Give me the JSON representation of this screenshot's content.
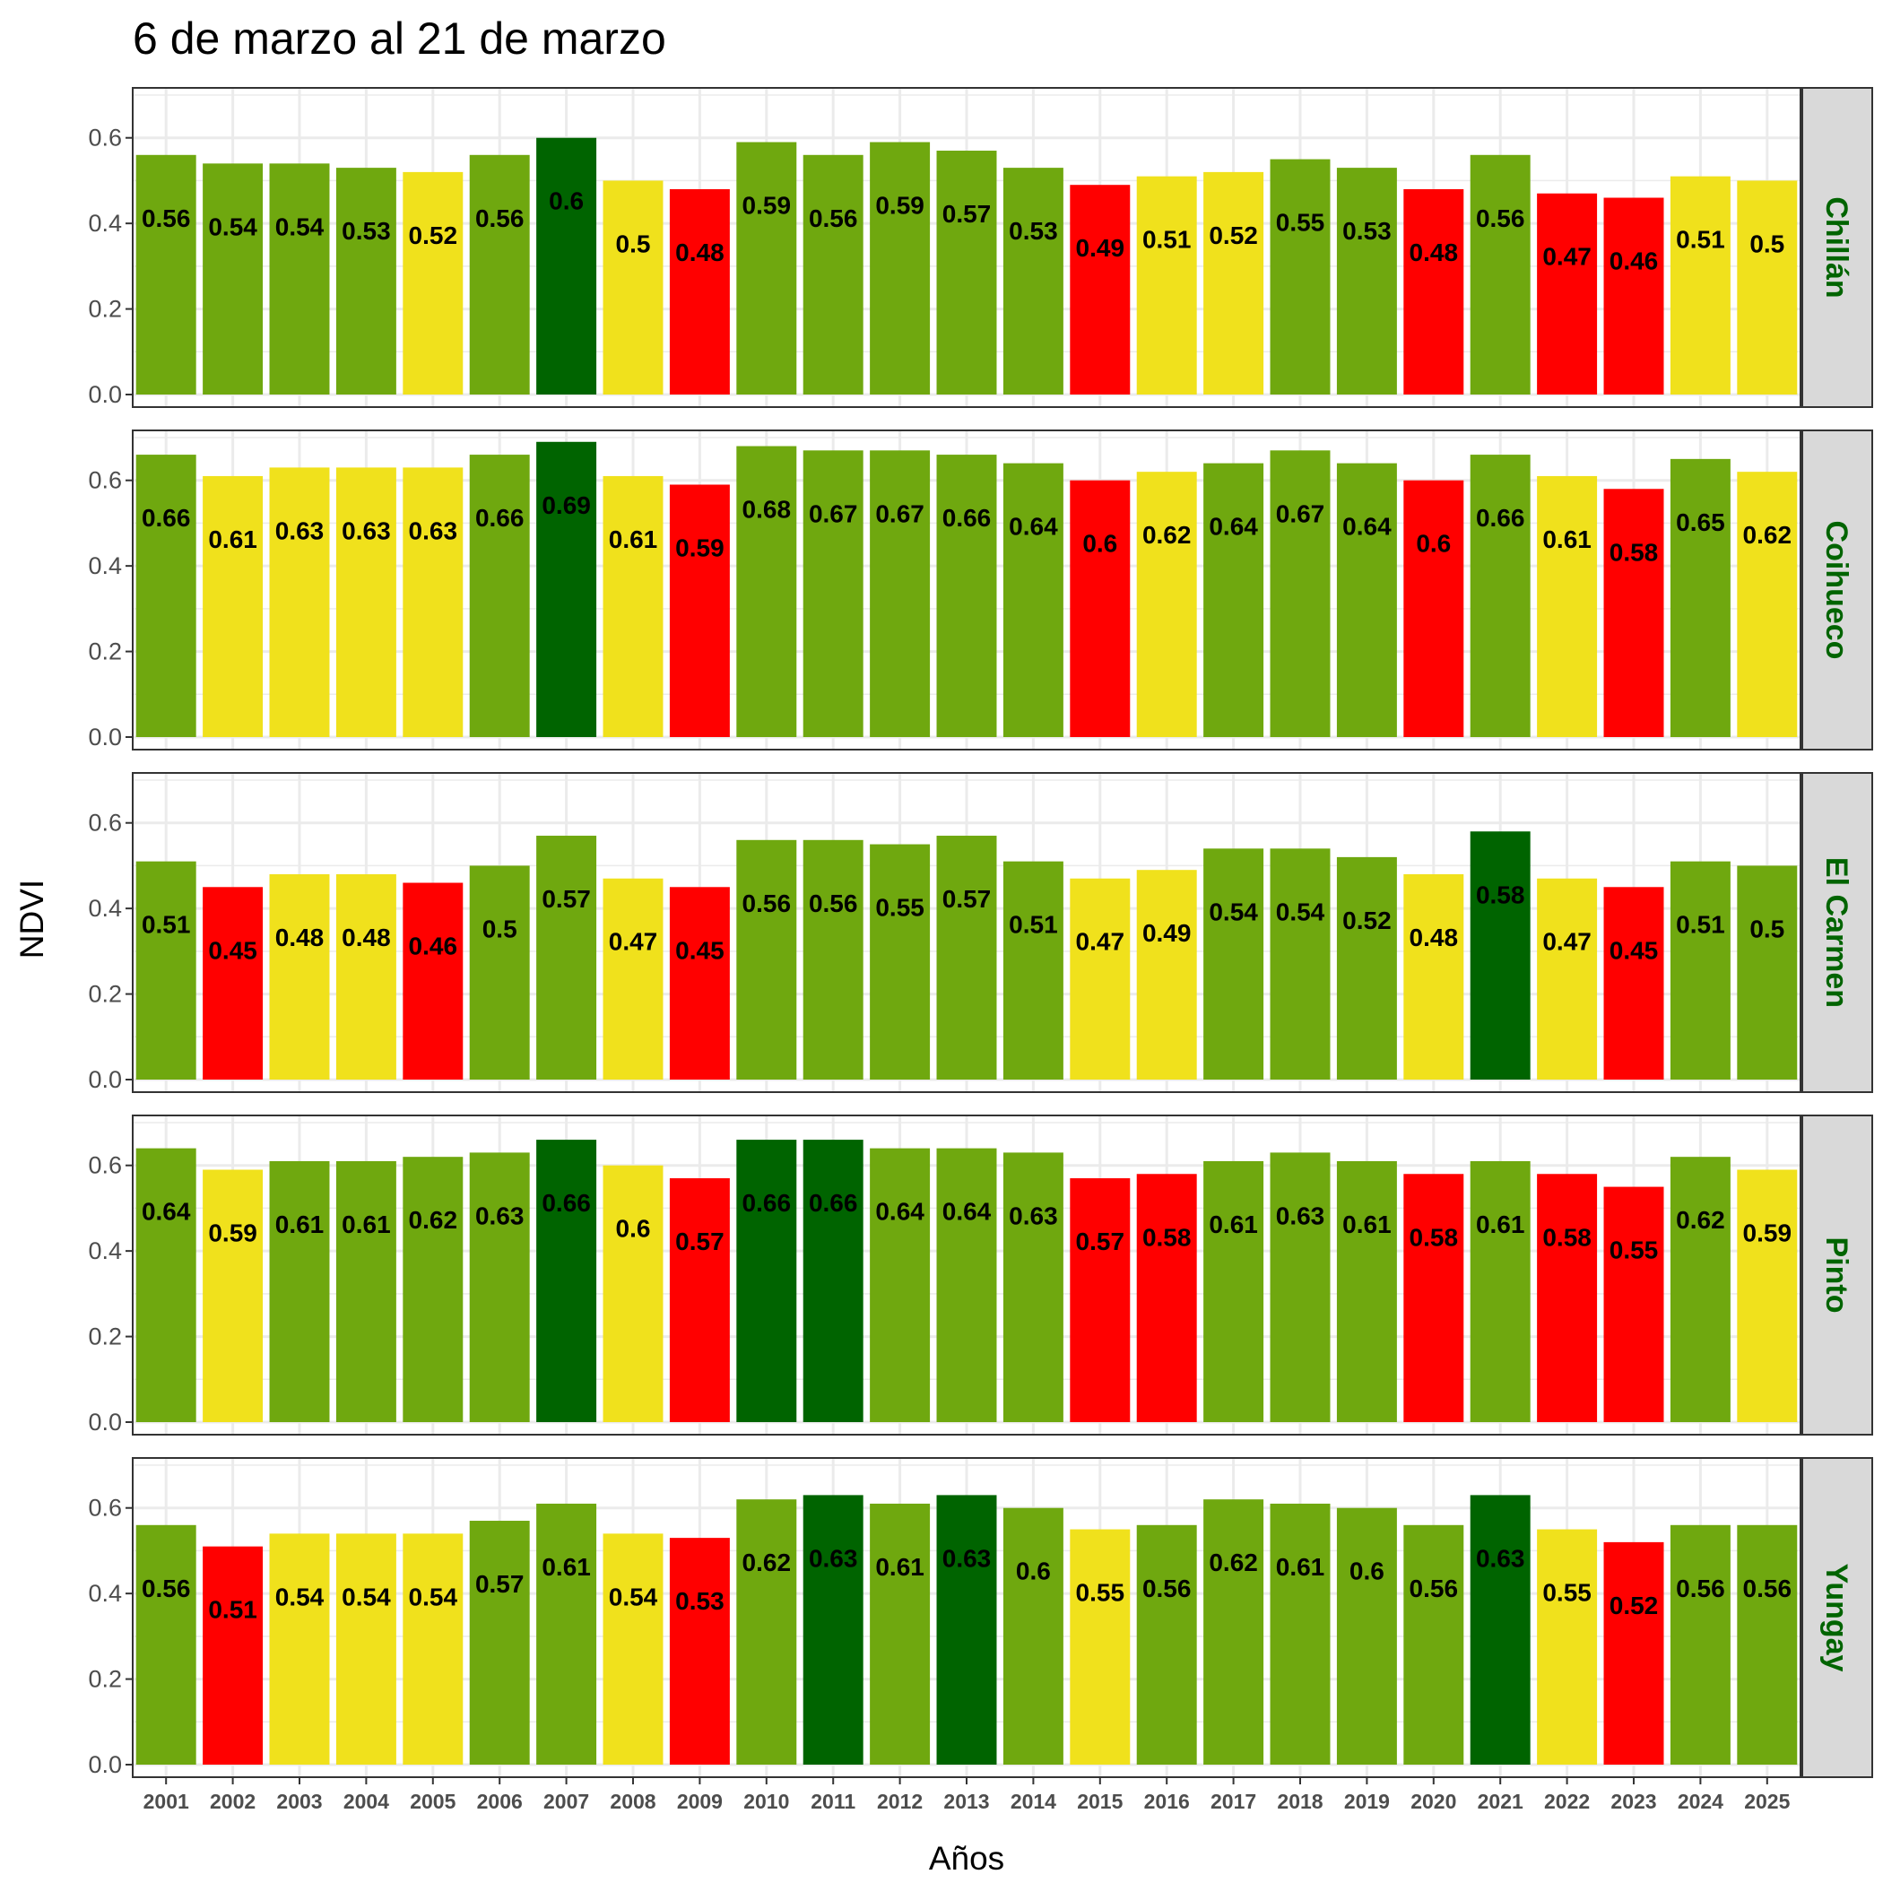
{
  "chart_data": {
    "type": "bar",
    "title": "6 de marzo al 21 de marzo",
    "xlabel": "Años",
    "ylabel": "NDVI",
    "ylim": [
      0,
      0.7
    ],
    "yticks": [
      "0.0",
      "0.2",
      "0.4",
      "0.6"
    ],
    "grid": true,
    "categories": [
      "2001",
      "2002",
      "2003",
      "2004",
      "2005",
      "2006",
      "2007",
      "2008",
      "2009",
      "2010",
      "2011",
      "2012",
      "2013",
      "2014",
      "2015",
      "2016",
      "2017",
      "2018",
      "2019",
      "2020",
      "2021",
      "2022",
      "2023",
      "2024",
      "2025"
    ],
    "colors": {
      "dark_green": "#006400",
      "green": "#6fa80f",
      "yellow": "#f0e11c",
      "red": "#ff0000",
      "strip_bg": "#d9d9d9",
      "strip_text": "#006400",
      "grid": "#ebebeb"
    },
    "panels": [
      {
        "name": "Chillán",
        "values": [
          0.56,
          0.54,
          0.54,
          0.53,
          0.52,
          0.56,
          0.6,
          0.5,
          0.48,
          0.59,
          0.56,
          0.59,
          0.57,
          0.53,
          0.49,
          0.51,
          0.52,
          0.55,
          0.53,
          0.48,
          0.56,
          0.47,
          0.46,
          0.51,
          0.5
        ],
        "labels": [
          "0.56",
          "0.54",
          "0.54",
          "0.53",
          "0.52",
          "0.56",
          "0.6",
          "0.5",
          "0.48",
          "0.59",
          "0.56",
          "0.59",
          "0.57",
          "0.53",
          "0.49",
          "0.51",
          "0.52",
          "0.55",
          "0.53",
          "0.48",
          "0.56",
          "0.47",
          "0.46",
          "0.51",
          "0.5"
        ],
        "classes": [
          "green",
          "green",
          "green",
          "green",
          "yellow",
          "green",
          "dark_green",
          "yellow",
          "red",
          "green",
          "green",
          "green",
          "green",
          "green",
          "red",
          "yellow",
          "yellow",
          "green",
          "green",
          "red",
          "green",
          "red",
          "red",
          "yellow",
          "yellow"
        ]
      },
      {
        "name": "Coihueco",
        "values": [
          0.66,
          0.61,
          0.63,
          0.63,
          0.63,
          0.66,
          0.69,
          0.61,
          0.59,
          0.68,
          0.67,
          0.67,
          0.66,
          0.64,
          0.6,
          0.62,
          0.64,
          0.67,
          0.64,
          0.6,
          0.66,
          0.61,
          0.58,
          0.65,
          0.62
        ],
        "labels": [
          "0.66",
          "0.61",
          "0.63",
          "0.63",
          "0.63",
          "0.66",
          "0.69",
          "0.61",
          "0.59",
          "0.68",
          "0.67",
          "0.67",
          "0.66",
          "0.64",
          "0.6",
          "0.62",
          "0.64",
          "0.67",
          "0.64",
          "0.6",
          "0.66",
          "0.61",
          "0.58",
          "0.65",
          "0.62"
        ],
        "classes": [
          "green",
          "yellow",
          "yellow",
          "yellow",
          "yellow",
          "green",
          "dark_green",
          "yellow",
          "red",
          "green",
          "green",
          "green",
          "green",
          "green",
          "red",
          "yellow",
          "green",
          "green",
          "green",
          "red",
          "green",
          "yellow",
          "red",
          "green",
          "yellow"
        ]
      },
      {
        "name": "El Carmen",
        "values": [
          0.51,
          0.45,
          0.48,
          0.48,
          0.46,
          0.5,
          0.57,
          0.47,
          0.45,
          0.56,
          0.56,
          0.55,
          0.57,
          0.51,
          0.47,
          0.49,
          0.54,
          0.54,
          0.52,
          0.48,
          0.58,
          0.47,
          0.45,
          0.51,
          0.5
        ],
        "labels": [
          "0.51",
          "0.45",
          "0.48",
          "0.48",
          "0.46",
          "0.5",
          "0.57",
          "0.47",
          "0.45",
          "0.56",
          "0.56",
          "0.55",
          "0.57",
          "0.51",
          "0.47",
          "0.49",
          "0.54",
          "0.54",
          "0.52",
          "0.48",
          "0.58",
          "0.47",
          "0.45",
          "0.51",
          "0.5"
        ],
        "classes": [
          "green",
          "red",
          "yellow",
          "yellow",
          "red",
          "green",
          "green",
          "yellow",
          "red",
          "green",
          "green",
          "green",
          "green",
          "green",
          "yellow",
          "yellow",
          "green",
          "green",
          "green",
          "yellow",
          "dark_green",
          "yellow",
          "red",
          "green",
          "green"
        ]
      },
      {
        "name": "Pinto",
        "values": [
          0.64,
          0.59,
          0.61,
          0.61,
          0.62,
          0.63,
          0.66,
          0.6,
          0.57,
          0.66,
          0.66,
          0.64,
          0.64,
          0.63,
          0.57,
          0.58,
          0.61,
          0.63,
          0.61,
          0.58,
          0.61,
          0.58,
          0.55,
          0.62,
          0.59
        ],
        "labels": [
          "0.64",
          "0.59",
          "0.61",
          "0.61",
          "0.62",
          "0.63",
          "0.66",
          "0.6",
          "0.57",
          "0.66",
          "0.66",
          "0.64",
          "0.64",
          "0.63",
          "0.57",
          "0.58",
          "0.61",
          "0.63",
          "0.61",
          "0.58",
          "0.61",
          "0.58",
          "0.55",
          "0.62",
          "0.59"
        ],
        "classes": [
          "green",
          "yellow",
          "green",
          "green",
          "green",
          "green",
          "dark_green",
          "yellow",
          "red",
          "dark_green",
          "dark_green",
          "green",
          "green",
          "green",
          "red",
          "red",
          "green",
          "green",
          "green",
          "red",
          "green",
          "red",
          "red",
          "green",
          "yellow"
        ]
      },
      {
        "name": "Yungay",
        "values": [
          0.56,
          0.51,
          0.54,
          0.54,
          0.54,
          0.57,
          0.61,
          0.54,
          0.53,
          0.62,
          0.63,
          0.61,
          0.63,
          0.6,
          0.55,
          0.56,
          0.62,
          0.61,
          0.6,
          0.56,
          0.63,
          0.55,
          0.52,
          0.56,
          0.56
        ],
        "labels": [
          "0.56",
          "0.51",
          "0.54",
          "0.54",
          "0.54",
          "0.57",
          "0.61",
          "0.54",
          "0.53",
          "0.62",
          "0.63",
          "0.61",
          "0.63",
          "0.6",
          "0.55",
          "0.56",
          "0.62",
          "0.61",
          "0.6",
          "0.56",
          "0.63",
          "0.55",
          "0.52",
          "0.56",
          "0.56"
        ],
        "classes": [
          "green",
          "red",
          "yellow",
          "yellow",
          "yellow",
          "green",
          "green",
          "yellow",
          "red",
          "green",
          "dark_green",
          "green",
          "dark_green",
          "green",
          "yellow",
          "green",
          "green",
          "green",
          "green",
          "green",
          "dark_green",
          "yellow",
          "red",
          "green",
          "green"
        ]
      }
    ]
  }
}
